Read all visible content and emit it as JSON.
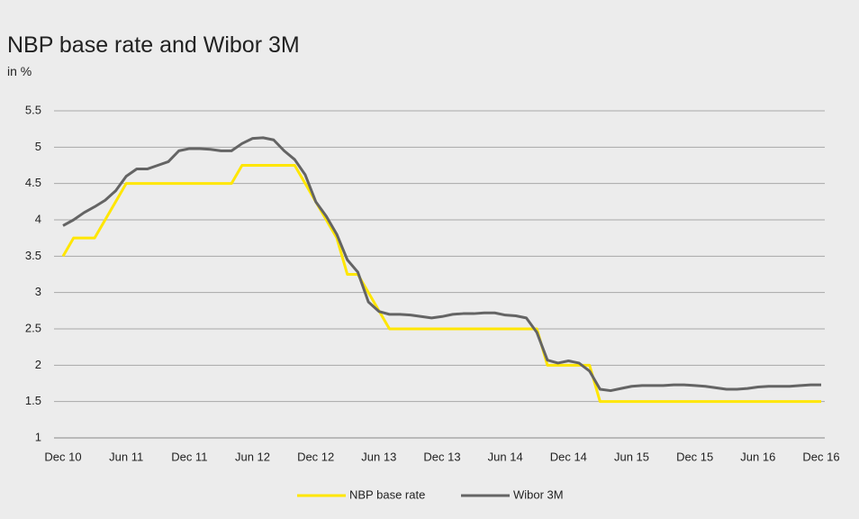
{
  "chart_data": {
    "type": "line",
    "title": "NBP base rate and Wibor 3M",
    "subtitle": "in %",
    "categories": [
      "Dec 10",
      null,
      null,
      null,
      null,
      null,
      "Jun 11",
      null,
      null,
      null,
      null,
      null,
      "Dec 11",
      null,
      null,
      null,
      null,
      null,
      "Jun 12",
      null,
      null,
      null,
      null,
      null,
      "Dec 12",
      null,
      null,
      null,
      null,
      null,
      "Jun 13",
      null,
      null,
      null,
      null,
      null,
      "Dec 13",
      null,
      null,
      null,
      null,
      null,
      "Jun 14",
      null,
      null,
      null,
      null,
      null,
      "Dec 14",
      null,
      null,
      null,
      null,
      null,
      "Jun 15",
      null,
      null,
      null,
      null,
      null,
      "Dec 15",
      null,
      null,
      null,
      null,
      null,
      "Jun 16",
      null,
      null,
      null,
      null,
      null,
      "Dec 16"
    ],
    "series": [
      {
        "name": "NBP base rate",
        "color": "#ffe600",
        "values": [
          3.5,
          3.75,
          3.75,
          3.75,
          4.0,
          4.25,
          4.5,
          4.5,
          4.5,
          4.5,
          4.5,
          4.5,
          4.5,
          4.5,
          4.5,
          4.5,
          4.5,
          4.75,
          4.75,
          4.75,
          4.75,
          4.75,
          4.75,
          4.5,
          4.25,
          4.0,
          3.75,
          3.25,
          3.25,
          3.0,
          2.75,
          2.5,
          2.5,
          2.5,
          2.5,
          2.5,
          2.5,
          2.5,
          2.5,
          2.5,
          2.5,
          2.5,
          2.5,
          2.5,
          2.5,
          2.5,
          2.0,
          2.0,
          2.0,
          2.0,
          2.0,
          1.5,
          1.5,
          1.5,
          1.5,
          1.5,
          1.5,
          1.5,
          1.5,
          1.5,
          1.5,
          1.5,
          1.5,
          1.5,
          1.5,
          1.5,
          1.5,
          1.5,
          1.5,
          1.5,
          1.5,
          1.5,
          1.5
        ]
      },
      {
        "name": "Wibor 3M",
        "color": "#646464",
        "values": [
          3.92,
          4.0,
          4.1,
          4.18,
          4.27,
          4.4,
          4.6,
          4.7,
          4.7,
          4.75,
          4.8,
          4.95,
          4.98,
          4.98,
          4.97,
          4.95,
          4.95,
          5.05,
          5.12,
          5.13,
          5.1,
          4.95,
          4.83,
          4.62,
          4.25,
          4.05,
          3.8,
          3.45,
          3.28,
          2.87,
          2.74,
          2.7,
          2.7,
          2.69,
          2.67,
          2.65,
          2.67,
          2.7,
          2.71,
          2.71,
          2.72,
          2.72,
          2.69,
          2.68,
          2.65,
          2.45,
          2.07,
          2.03,
          2.06,
          2.03,
          1.92,
          1.67,
          1.65,
          1.68,
          1.71,
          1.72,
          1.72,
          1.72,
          1.73,
          1.73,
          1.72,
          1.71,
          1.69,
          1.67,
          1.67,
          1.68,
          1.7,
          1.71,
          1.71,
          1.71,
          1.72,
          1.73,
          1.73
        ]
      }
    ],
    "ylim": [
      1,
      5.5
    ],
    "yticks": [
      1,
      1.5,
      2,
      2.5,
      3,
      3.5,
      4,
      4.5,
      5,
      5.5
    ],
    "grid": true,
    "legend": "bottom"
  }
}
